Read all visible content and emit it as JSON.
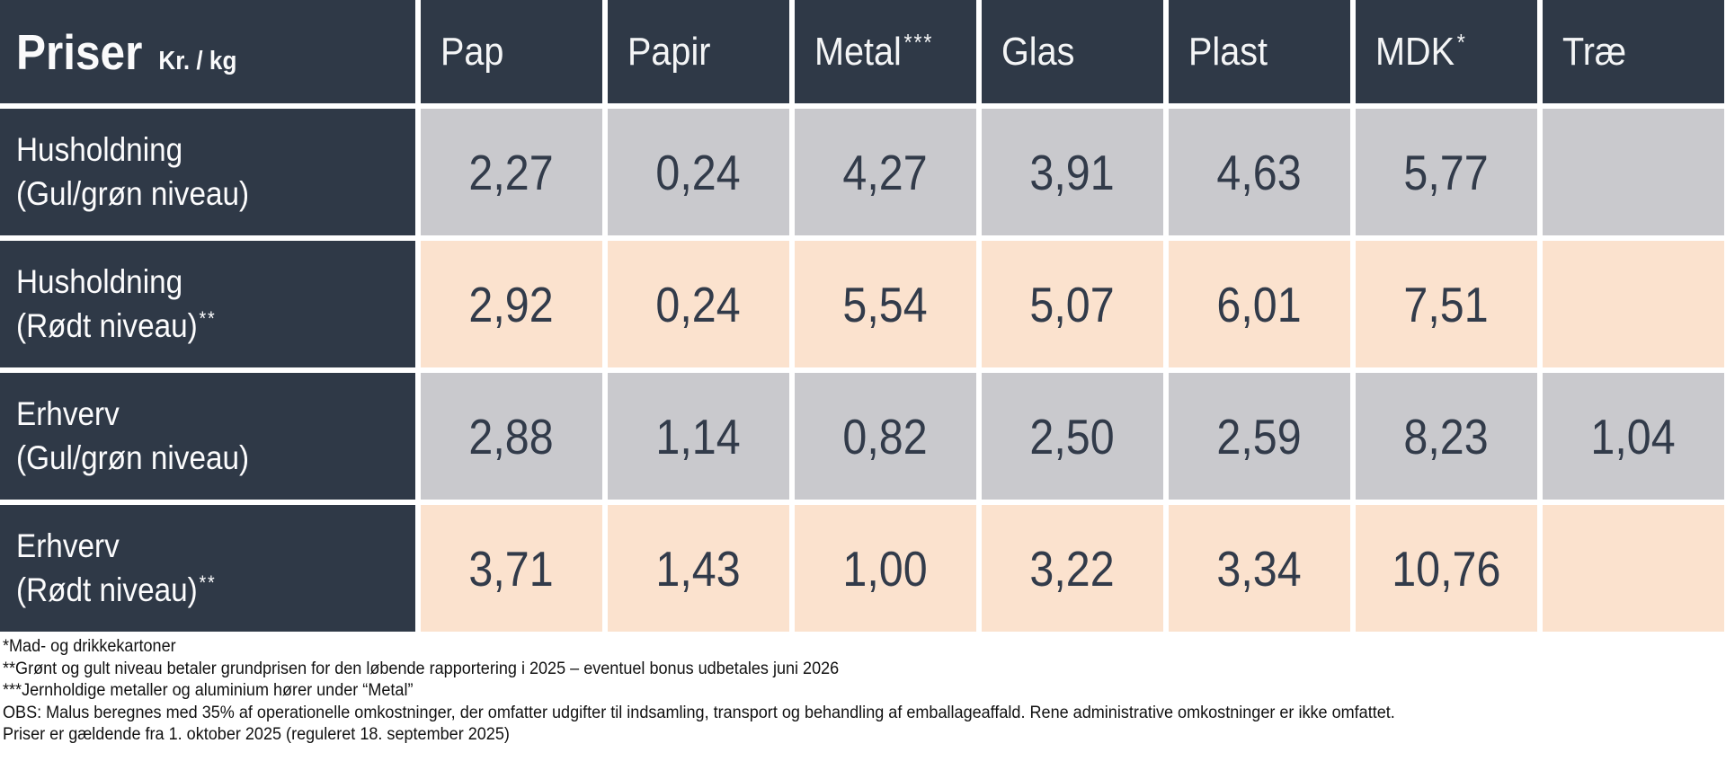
{
  "table": {
    "title": "Priser",
    "unit": "Kr. / kg",
    "columns": [
      {
        "label": "Pap",
        "sup": ""
      },
      {
        "label": "Papir",
        "sup": ""
      },
      {
        "label": "Metal",
        "sup": "***"
      },
      {
        "label": "Glas",
        "sup": ""
      },
      {
        "label": "Plast",
        "sup": ""
      },
      {
        "label": "MDK",
        "sup": "*"
      },
      {
        "label": "Træ",
        "sup": ""
      }
    ],
    "rows": [
      {
        "line1": "Husholdning",
        "line2": "(Gul/grøn niveau)",
        "sup": "",
        "tone": "gray",
        "values": [
          "2,27",
          "0,24",
          "4,27",
          "3,91",
          "4,63",
          "5,77",
          ""
        ]
      },
      {
        "line1": "Husholdning",
        "line2": "(Rødt niveau)",
        "sup": "**",
        "tone": "peach",
        "values": [
          "2,92",
          "0,24",
          "5,54",
          "5,07",
          "6,01",
          "7,51",
          ""
        ]
      },
      {
        "line1": "Erhverv",
        "line2": "(Gul/grøn niveau)",
        "sup": "",
        "tone": "gray",
        "values": [
          "2,88",
          "1,14",
          "0,82",
          "2,50",
          "2,59",
          "8,23",
          "1,04"
        ]
      },
      {
        "line1": "Erhverv",
        "line2": "(Rødt niveau)",
        "sup": "**",
        "tone": "peach",
        "values": [
          "3,71",
          "1,43",
          "1,00",
          "3,22",
          "3,34",
          "10,76",
          ""
        ]
      }
    ]
  },
  "footnotes": [
    "*Mad- og drikkekartoner",
    "**Grønt og gult niveau betaler grundprisen for den løbende rapportering i 2025 – eventuel bonus udbetales juni 2026",
    "***Jernholdige metaller og aluminium hører under “Metal”",
    "OBS: Malus beregnes med 35% af operationelle omkostninger, der omfatter udgifter til indsamling, transport og behandling af emballageaffald. Rene administrative omkostninger er ikke omfattet.",
    "Priser er gældende fra 1. oktober 2025 (reguleret 18. september 2025)"
  ],
  "colors": {
    "header_navy": "#2F3947",
    "cell_gray": "#C9C9CD",
    "cell_peach": "#FBE2CE",
    "value_text": "#323B4A",
    "gridline": "#FFFFFF"
  },
  "chart_data": {
    "type": "table",
    "title": "Priser (Kr. / kg)",
    "columns": [
      "Pap",
      "Papir",
      "Metal***",
      "Glas",
      "Plast",
      "MDK*",
      "Træ"
    ],
    "rows": [
      {
        "label": "Husholdning (Gul/grøn niveau)",
        "values": [
          2.27,
          0.24,
          4.27,
          3.91,
          4.63,
          5.77,
          null
        ]
      },
      {
        "label": "Husholdning (Rødt niveau)**",
        "values": [
          2.92,
          0.24,
          5.54,
          5.07,
          6.01,
          7.51,
          null
        ]
      },
      {
        "label": "Erhverv (Gul/grøn niveau)",
        "values": [
          2.88,
          1.14,
          0.82,
          2.5,
          2.59,
          8.23,
          1.04
        ]
      },
      {
        "label": "Erhverv (Rødt niveau)**",
        "values": [
          3.71,
          1.43,
          1.0,
          3.22,
          3.34,
          10.76,
          null
        ]
      }
    ],
    "unit": "Kr. / kg",
    "notes": "rows alternate gray (Gul/grøn) and peach (Rødt) backgrounds"
  }
}
